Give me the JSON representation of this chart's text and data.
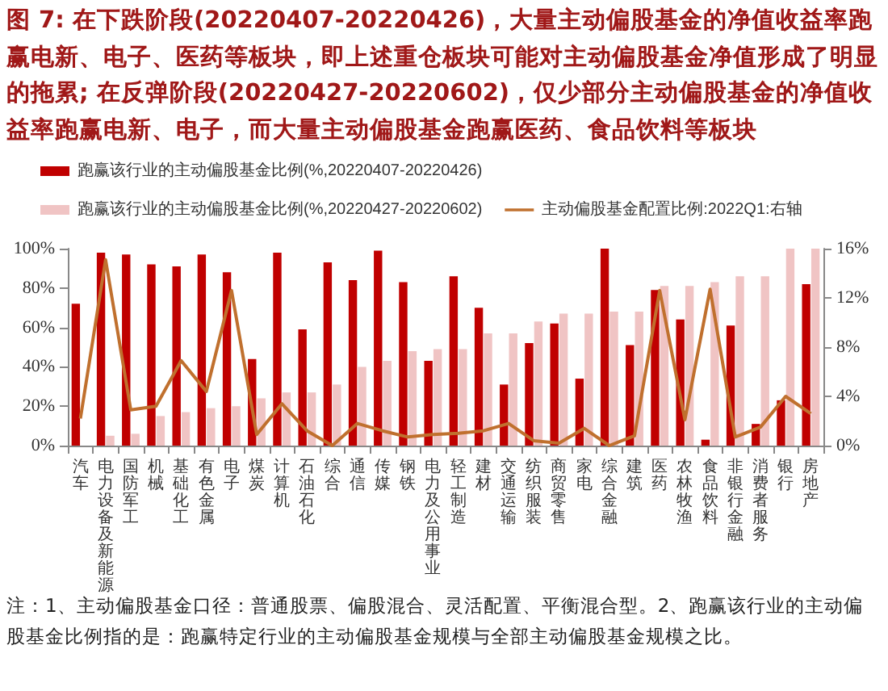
{
  "chart_data": {
    "type": "bar",
    "title": "图 7: 在下跌阶段(20220407-20220426)，大量主动偏股基金的净值收益率跑赢电新、电子、医药等板块，即上述重仓板块可能对主动偏股基金净值形成了明显的拖累; 在反弹阶段(20220427-20220602)，仅少部分主动偏股基金的净值收益率跑赢电新、电子，而大量主动偏股基金跑赢医药、食品饮料等板块",
    "categories": [
      "汽车",
      "电力设备及新能源",
      "国防军工",
      "机械",
      "基础化工",
      "有色金属",
      "电子",
      "煤炭",
      "计算机",
      "石油石化",
      "综合",
      "通信",
      "传媒",
      "钢铁",
      "电力及公用事业",
      "轻工制造",
      "建材",
      "交通运输",
      "纺织服装",
      "商贸零售",
      "家电",
      "综合金融",
      "建筑",
      "医药",
      "农林牧渔",
      "食品饮料",
      "非银行金融",
      "消费者服务",
      "银行",
      "房地产"
    ],
    "series": [
      {
        "name": "跑赢该行业的主动偏股基金比例(%,20220407-20220426)",
        "color": "#c00000",
        "values": [
          72,
          98,
          97,
          92,
          91,
          97,
          88,
          44,
          98,
          59,
          93,
          84,
          99,
          83,
          43,
          86,
          70,
          31,
          52,
          62,
          34,
          100,
          51,
          79,
          64,
          3,
          61,
          11,
          23,
          82
        ]
      },
      {
        "name": "跑赢该行业的主动偏股基金比例(%,20220427-20220602)",
        "color": "#f0c4c4",
        "values": [
          0,
          5,
          6,
          15,
          17,
          19,
          20,
          24,
          27,
          27,
          31,
          40,
          43,
          48,
          49,
          49,
          57,
          57,
          63,
          67,
          67,
          68,
          68,
          81,
          81,
          83,
          86,
          86,
          100,
          100
        ]
      },
      {
        "name": "主动偏股基金配置比例:2022Q1:右轴",
        "type": "line",
        "axis": "y2",
        "color": "#c0702e",
        "values": [
          2.2,
          15.1,
          2.9,
          3.2,
          6.9,
          4.4,
          12.6,
          0.9,
          3.4,
          1.2,
          0,
          1.8,
          1.2,
          0.7,
          0.9,
          1.0,
          1.2,
          1.8,
          0.4,
          0.2,
          1.4,
          0,
          0.8,
          12.6,
          2.1,
          12.7,
          0.7,
          1.5,
          4.0,
          2.6
        ]
      }
    ],
    "ylim": [
      0,
      100
    ],
    "yticks": [
      {
        "value": 0,
        "label": "0%"
      },
      {
        "value": 20,
        "label": "20%"
      },
      {
        "value": 40,
        "label": "40%"
      },
      {
        "value": 60,
        "label": "60%"
      },
      {
        "value": 80,
        "label": "80%"
      },
      {
        "value": 100,
        "label": "100%"
      }
    ],
    "y2lim": [
      0,
      16
    ],
    "y2ticks": [
      {
        "value": 0,
        "label": "0%"
      },
      {
        "value": 4,
        "label": "4%"
      },
      {
        "value": 8,
        "label": "8%"
      },
      {
        "value": 12,
        "label": "12%"
      },
      {
        "value": 16,
        "label": "16%"
      }
    ],
    "legend": "top left",
    "grid": false,
    "marker": "none",
    "line_style": "solid",
    "annotations": [
      "注：1、主动偏股基金口径：普通股票、偏股混合、灵活配置、平衡混合型。2、跑赢该行业的主动偏股基金比例指的是：跑赢特定行业的主动偏股基金规模与全部主动偏股基金规模之比。"
    ]
  }
}
